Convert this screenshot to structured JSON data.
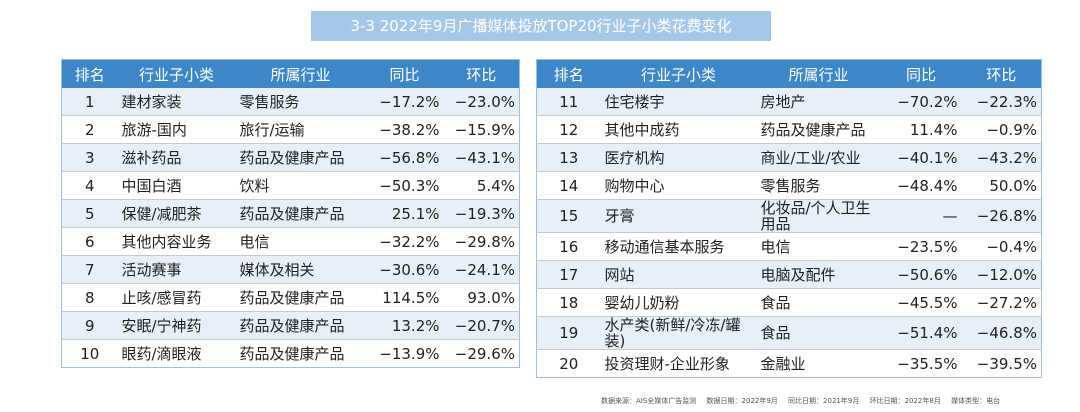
{
  "title": "3-3 2022年9月广播媒体投放TOP20行业子小类花费变化",
  "headers": {
    "rank": "排名",
    "sub": "行业子小类",
    "industry": "所属行业",
    "yoy": "同比",
    "mom": "环比"
  },
  "left_rows": [
    {
      "rank": "1",
      "sub": "建材家装",
      "industry": "零售服务",
      "yoy": "−17.2%",
      "mom": "−23.0%"
    },
    {
      "rank": "2",
      "sub": "旅游-国内",
      "industry": "旅行/运输",
      "yoy": "−38.2%",
      "mom": "−15.9%"
    },
    {
      "rank": "3",
      "sub": "滋补药品",
      "industry": "药品及健康产品",
      "yoy": "−56.8%",
      "mom": "−43.1%"
    },
    {
      "rank": "4",
      "sub": "中国白酒",
      "industry": "饮料",
      "yoy": "−50.3%",
      "mom": "5.4%"
    },
    {
      "rank": "5",
      "sub": "保健/减肥茶",
      "industry": "药品及健康产品",
      "yoy": "25.1%",
      "mom": "−19.3%"
    },
    {
      "rank": "6",
      "sub": "其他内容业务",
      "industry": "电信",
      "yoy": "−32.2%",
      "mom": "−29.8%"
    },
    {
      "rank": "7",
      "sub": "活动赛事",
      "industry": "媒体及相关",
      "yoy": "−30.6%",
      "mom": "−24.1%"
    },
    {
      "rank": "8",
      "sub": "止咳/感冒药",
      "industry": "药品及健康产品",
      "yoy": "114.5%",
      "mom": "93.0%"
    },
    {
      "rank": "9",
      "sub": "安眠/宁神药",
      "industry": "药品及健康产品",
      "yoy": "13.2%",
      "mom": "−20.7%"
    },
    {
      "rank": "10",
      "sub": "眼药/滴眼液",
      "industry": "药品及健康产品",
      "yoy": "−13.9%",
      "mom": "−29.6%"
    }
  ],
  "right_rows": [
    {
      "rank": "11",
      "sub": "住宅楼宇",
      "industry": "房地产",
      "yoy": "−70.2%",
      "mom": "−22.3%"
    },
    {
      "rank": "12",
      "sub": "其他中成药",
      "industry": "药品及健康产品",
      "yoy": "11.4%",
      "mom": "−0.9%"
    },
    {
      "rank": "13",
      "sub": "医疗机构",
      "industry": "商业/工业/农业",
      "yoy": "−40.1%",
      "mom": "−43.2%"
    },
    {
      "rank": "14",
      "sub": "购物中心",
      "industry": "零售服务",
      "yoy": "−48.4%",
      "mom": "50.0%"
    },
    {
      "rank": "15",
      "sub": "牙膏",
      "industry": "化妆品/个人卫生用品",
      "yoy": "—",
      "mom": "−26.8%"
    },
    {
      "rank": "16",
      "sub": "移动通信基本服务",
      "industry": "电信",
      "yoy": "−23.5%",
      "mom": "−0.4%"
    },
    {
      "rank": "17",
      "sub": "网站",
      "industry": "电脑及配件",
      "yoy": "−50.6%",
      "mom": "−12.0%"
    },
    {
      "rank": "18",
      "sub": "婴幼儿奶粉",
      "industry": "食品",
      "yoy": "−45.5%",
      "mom": "−27.2%"
    },
    {
      "rank": "19",
      "sub": "水产类(新鲜/冷冻/罐装)",
      "industry": "食品",
      "yoy": "−51.4%",
      "mom": "−46.8%"
    },
    {
      "rank": "20",
      "sub": "投资理财-企业形象",
      "industry": "金融业",
      "yoy": "−35.5%",
      "mom": "−39.5%"
    }
  ],
  "footnote": {
    "source": "数据来源：AIS全媒体广告监测",
    "date": "数据日期：2022年9月",
    "yoy_date": "同比日期：2021年9月",
    "mom_date": "环比日期：2022年8月",
    "media": "媒体类型：电台"
  }
}
